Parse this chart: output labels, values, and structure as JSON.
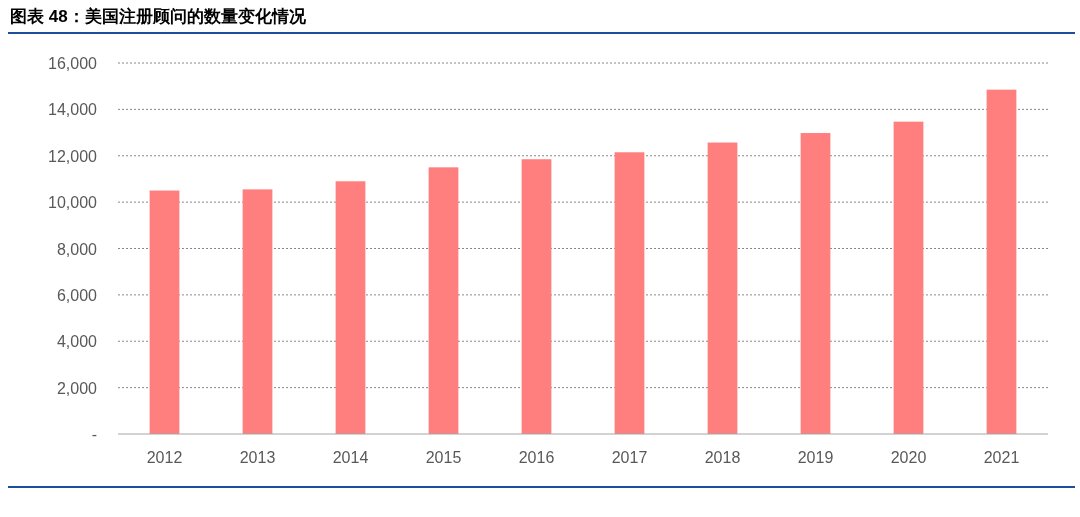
{
  "chart_data": {
    "type": "bar",
    "title": "图表 48：美国注册顾问的数量变化情况",
    "categories": [
      "2012",
      "2013",
      "2014",
      "2015",
      "2016",
      "2017",
      "2018",
      "2019",
      "2020",
      "2021"
    ],
    "values": [
      10500,
      10550,
      10900,
      11500,
      11850,
      12150,
      12570,
      12980,
      13470,
      14850
    ],
    "color": "#ff7f7f",
    "ylim": [
      0,
      16000
    ],
    "yticks": [
      {
        "value": 0,
        "label": "-"
      },
      {
        "value": 2000,
        "label": "2,000"
      },
      {
        "value": 4000,
        "label": "4,000"
      },
      {
        "value": 6000,
        "label": "6,000"
      },
      {
        "value": 8000,
        "label": "8,000"
      },
      {
        "value": 10000,
        "label": "10,000"
      },
      {
        "value": 12000,
        "label": "12,000"
      },
      {
        "value": 14000,
        "label": "14,000"
      },
      {
        "value": 16000,
        "label": "16,000"
      }
    ],
    "grid": "y"
  }
}
